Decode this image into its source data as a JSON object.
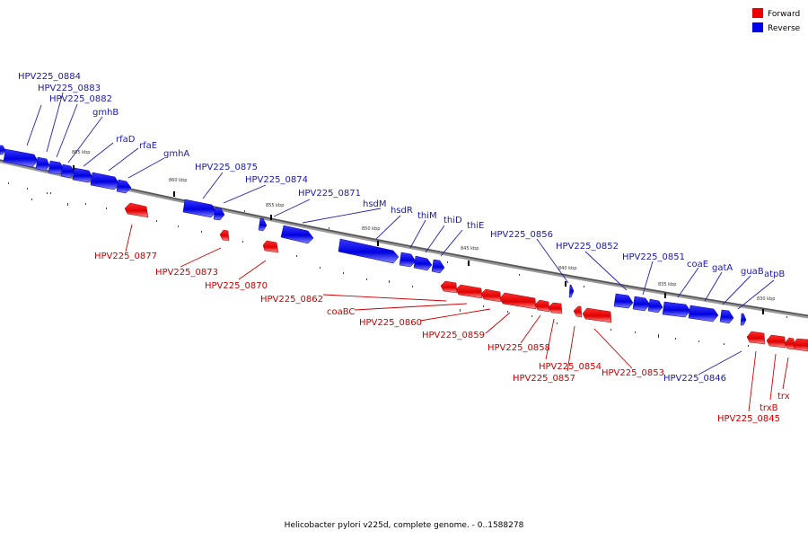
{
  "legend": {
    "items": [
      {
        "label": "Forward",
        "color": "#ee0000"
      },
      {
        "label": "Reverse",
        "color": "#0000ee"
      }
    ]
  },
  "caption": "Helicobacter pylori v225d, complete genome. - 0..1588278",
  "ticks": [
    "865 kbp",
    "860 kbp",
    "855 kbp",
    "850 kbp",
    "845 kbp",
    "840 kbp",
    "835 kbp",
    "830 kbp"
  ],
  "genes_reverse": [
    "HPV225_0884",
    "HPV225_0883",
    "HPV225_0882",
    "gmhB",
    "rfaD",
    "rfaE",
    "gmhA",
    "HPV225_0875",
    "HPV225_0874",
    "HPV225_0871",
    "hsdM",
    "hsdR",
    "thiM",
    "thiD",
    "thiE",
    "HPV225_0856",
    "HPV225_0852",
    "HPV225_0851",
    "coaE",
    "gatA",
    "guaB",
    "atpB",
    "HPV225_0846"
  ],
  "genes_forward": [
    "HPV225_0877",
    "HPV225_0873",
    "HPV225_0870",
    "HPV225_0862",
    "coaBC",
    "HPV225_0860",
    "HPV225_0859",
    "HPV225_0858",
    "HPV225_0854",
    "HPV225_0857",
    "HPV225_0853",
    "HPV225_0845",
    "trxB",
    "trx"
  ]
}
